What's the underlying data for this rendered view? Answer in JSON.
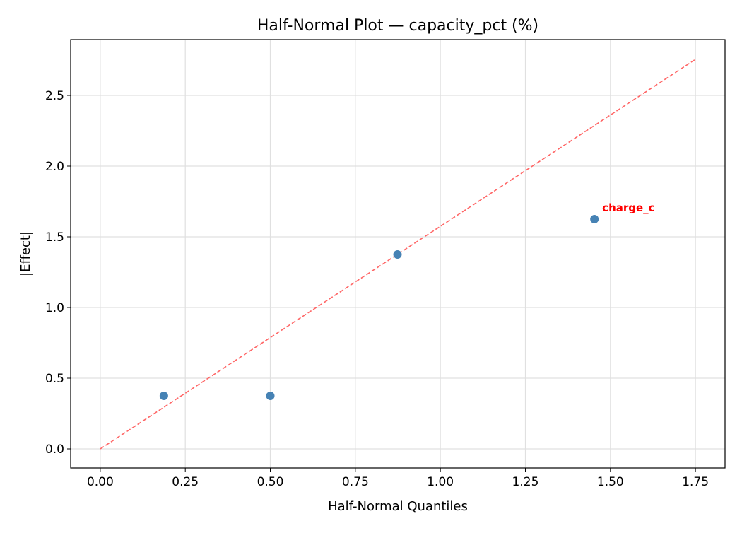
{
  "chart_data": {
    "type": "scatter",
    "title": "Half-Normal Plot — capacity_pct (%)",
    "xlabel": "Half-Normal Quantiles",
    "ylabel": "|Effect|",
    "xlim": [
      -0.087,
      1.837
    ],
    "ylim": [
      -0.135,
      2.895
    ],
    "xticks": [
      "0.00",
      "0.25",
      "0.50",
      "0.75",
      "1.00",
      "1.25",
      "1.50",
      "1.75"
    ],
    "yticks": [
      "0.0",
      "0.5",
      "1.0",
      "1.5",
      "2.0",
      "2.5"
    ],
    "grid": true,
    "points": [
      {
        "x": 0.187,
        "y": 0.375
      },
      {
        "x": 0.5,
        "y": 0.375
      },
      {
        "x": 0.874,
        "y": 1.375
      },
      {
        "x": 1.453,
        "y": 1.625,
        "label": "charge_c"
      }
    ],
    "reference_line": {
      "x": [
        0,
        1.75
      ],
      "y": [
        0,
        2.755
      ],
      "style": "dashed"
    },
    "colors": {
      "points": "#4682b4",
      "reference_line": "#ff6666",
      "annotation": "#ff0000"
    }
  }
}
